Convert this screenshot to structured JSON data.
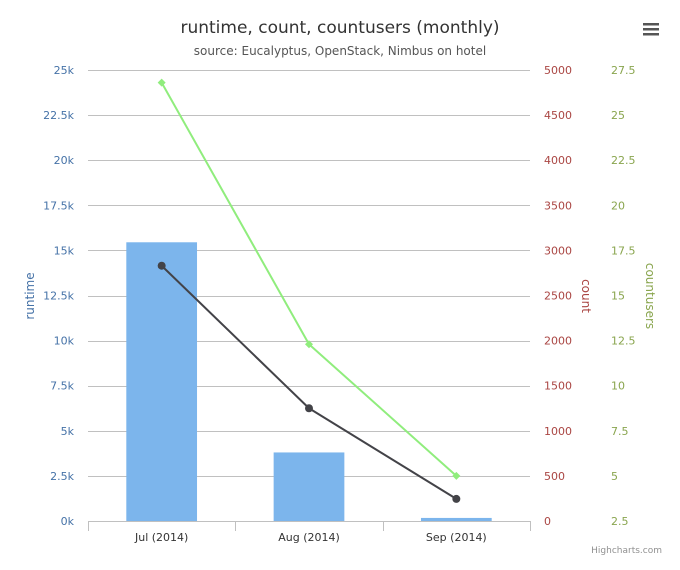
{
  "chart_data": {
    "type": "bar+line",
    "title": "runtime, count, countusers (monthly)",
    "subtitle": "source: Eucalyptus, OpenStack, Nimbus on hotel",
    "categories": [
      "Jul (2014)",
      "Aug (2014)",
      "Sep (2014)"
    ],
    "series": [
      {
        "name": "runtime",
        "type": "bar",
        "axis": "runtime",
        "values": [
          15450,
          3800,
          170
        ]
      },
      {
        "name": "count",
        "type": "line",
        "axis": "count",
        "values": [
          2830,
          1250,
          245
        ]
      },
      {
        "name": "countusers",
        "type": "line",
        "axis": "countusers",
        "values": [
          26.8,
          12.3,
          5.0
        ]
      }
    ],
    "axes": {
      "runtime": {
        "label": "runtime",
        "side": "left",
        "range": [
          0,
          25000
        ],
        "ticks": [
          {
            "value": 0,
            "label": "0k"
          },
          {
            "value": 2500,
            "label": "2.5k"
          },
          {
            "value": 5000,
            "label": "5k"
          },
          {
            "value": 7500,
            "label": "7.5k"
          },
          {
            "value": 10000,
            "label": "10k"
          },
          {
            "value": 12500,
            "label": "12.5k"
          },
          {
            "value": 15000,
            "label": "15k"
          },
          {
            "value": 17500,
            "label": "17.5k"
          },
          {
            "value": 20000,
            "label": "20k"
          },
          {
            "value": 22500,
            "label": "22.5k"
          },
          {
            "value": 25000,
            "label": "25k"
          }
        ]
      },
      "count": {
        "label": "count",
        "side": "right",
        "range": [
          0,
          5000
        ],
        "ticks": [
          {
            "value": 0,
            "label": "0"
          },
          {
            "value": 500,
            "label": "500"
          },
          {
            "value": 1000,
            "label": "1000"
          },
          {
            "value": 1500,
            "label": "1500"
          },
          {
            "value": 2000,
            "label": "2000"
          },
          {
            "value": 2500,
            "label": "2500"
          },
          {
            "value": 3000,
            "label": "3000"
          },
          {
            "value": 3500,
            "label": "3500"
          },
          {
            "value": 4000,
            "label": "4000"
          },
          {
            "value": 4500,
            "label": "4500"
          },
          {
            "value": 5000,
            "label": "5000"
          }
        ]
      },
      "countusers": {
        "label": "countusers",
        "side": "right",
        "range": [
          2.5,
          27.5
        ],
        "ticks": [
          {
            "value": 2.5,
            "label": "2.5"
          },
          {
            "value": 5,
            "label": "5"
          },
          {
            "value": 7.5,
            "label": "7.5"
          },
          {
            "value": 10,
            "label": "10"
          },
          {
            "value": 12.5,
            "label": "12.5"
          },
          {
            "value": 15,
            "label": "15"
          },
          {
            "value": 17.5,
            "label": "17.5"
          },
          {
            "value": 20,
            "label": "20"
          },
          {
            "value": 22.5,
            "label": "22.5"
          },
          {
            "value": 25,
            "label": "25"
          },
          {
            "value": 27.5,
            "label": "27.5"
          }
        ]
      }
    },
    "grid": true,
    "legend": "none",
    "colors": {
      "runtime": "#7cb5ec",
      "count": "#434348",
      "countusers": "#90ed7d",
      "runtime_axis_text": "#4572a7",
      "count_axis_text": "#aa4643",
      "countusers_axis_text": "#89a54e",
      "grid": "#c0c0c0",
      "title": "#333333",
      "subtitle": "#555555",
      "credits": "#909090"
    }
  },
  "ui": {
    "menu_icon": "hamburger-menu-icon",
    "credits": "Highcharts.com"
  }
}
